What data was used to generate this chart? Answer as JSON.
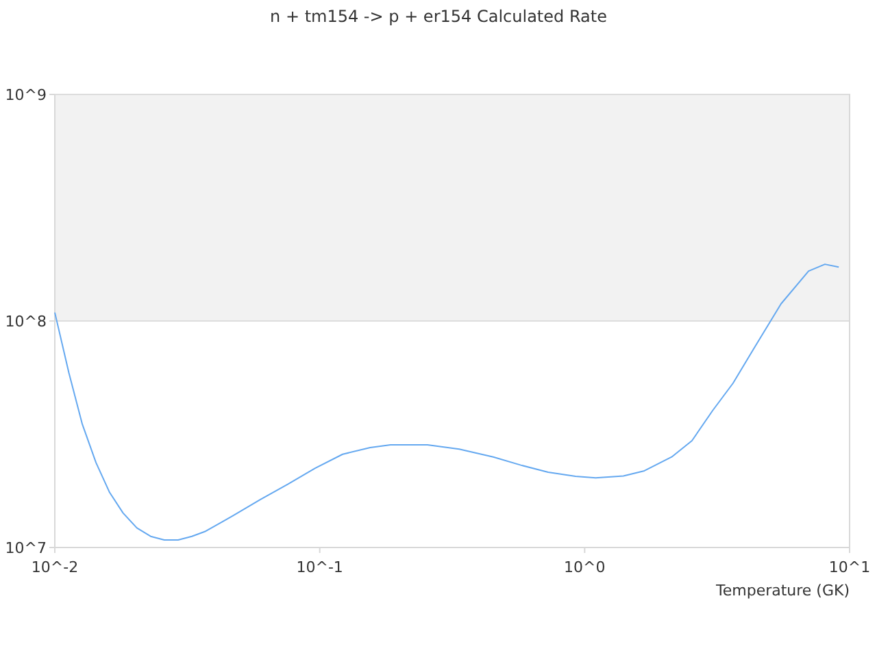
{
  "chart_data": {
    "type": "line",
    "title": "n + tm154 -> p + er154 Calculated Rate",
    "xlabel": "Temperature (GK)",
    "log": "xy",
    "xlim": [
      0.01,
      10
    ],
    "ylim": [
      10000000,
      1000000000
    ],
    "xticks": [
      {
        "value": 0.01,
        "label": "10^-2"
      },
      {
        "value": 0.1,
        "label": "10^-1"
      },
      {
        "value": 1,
        "label": "10^0"
      },
      {
        "value": 10,
        "label": "10^1"
      }
    ],
    "yticks": [
      {
        "value": 10000000,
        "label": "10^7"
      },
      {
        "value": 100000000,
        "label": "10^8"
      },
      {
        "value": 1000000000,
        "label": "10^9"
      }
    ],
    "bands": [
      {
        "axis": "y",
        "from": 100000000,
        "to": 1000000000,
        "color": "#f2f2f2"
      }
    ],
    "grid": false,
    "marker": "none",
    "line_style": "solid",
    "series": [
      {
        "color": "#64a8f0",
        "x": [
          0.01,
          0.0113,
          0.0127,
          0.0143,
          0.0161,
          0.0181,
          0.0204,
          0.023,
          0.0259,
          0.0292,
          0.0329,
          0.0371,
          0.047,
          0.0597,
          0.0757,
          0.0961,
          0.122,
          0.155,
          0.185,
          0.255,
          0.336,
          0.452,
          0.574,
          0.728,
          0.924,
          1.1,
          1.4,
          1.68,
          2.13,
          2.54,
          3.04,
          3.63,
          4.34,
          5.51,
          7.0,
          8.07,
          9.1
        ],
        "values": [
          109000000,
          59000000,
          35000000,
          23700000,
          17500000,
          14200000,
          12200000,
          11200000,
          10800000,
          10800000,
          11200000,
          11800000,
          13800000,
          16300000,
          19000000,
          22400000,
          25800000,
          27600000,
          28400000,
          28400000,
          27200000,
          25100000,
          23100000,
          21500000,
          20600000,
          20300000,
          20700000,
          21800000,
          25100000,
          29600000,
          40200000,
          53100000,
          75200000,
          119000000,
          166000000,
          178000000,
          173000000
        ]
      }
    ]
  }
}
